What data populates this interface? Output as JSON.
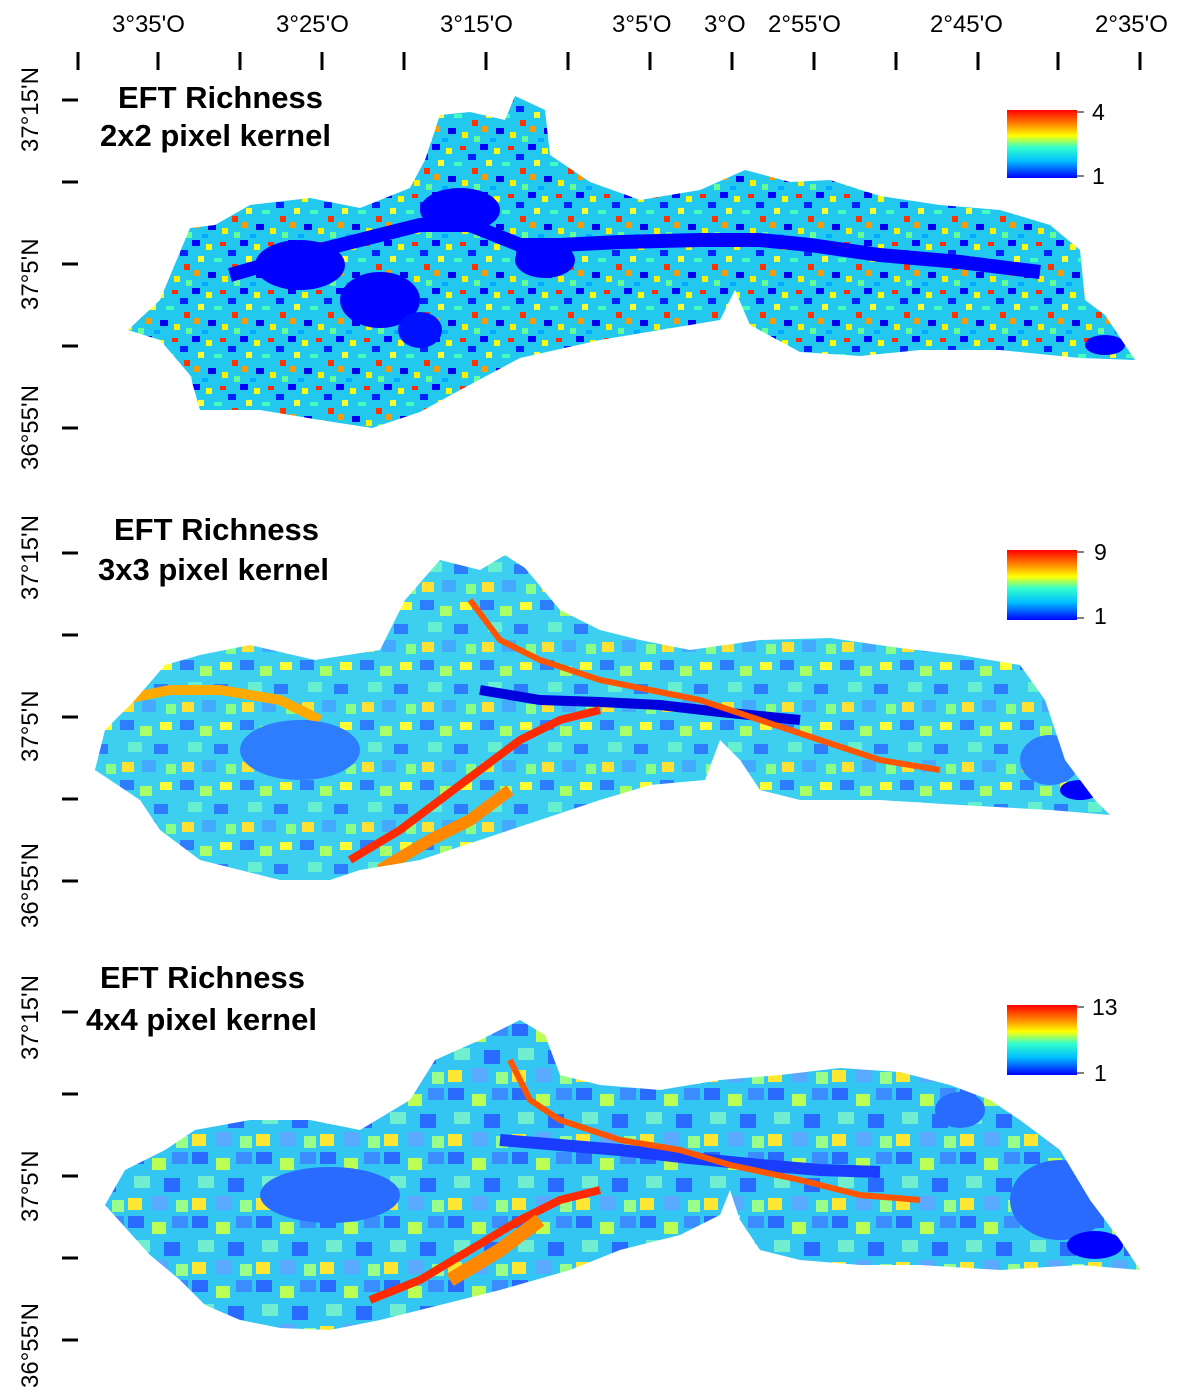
{
  "figure": {
    "longitude_labels": [
      "3°35'O",
      "3°25'O",
      "3°15'O",
      "3°5'O",
      "3°O",
      "2°55'O",
      "2°45'O",
      "2°35'O"
    ],
    "panels": [
      {
        "title_line1": "EFT Richness",
        "title_line2": "2x2 pixel kernel",
        "legend_max": "4",
        "legend_min": "1",
        "lat_label_top": "37°15'N",
        "lat_label_mid": "37°5'N",
        "lat_label_bottom": "36°55'N"
      },
      {
        "title_line1": "EFT Richness",
        "title_line2": "3x3 pixel kernel",
        "legend_max": "9",
        "legend_min": "1",
        "lat_label_top": "37°15'N",
        "lat_label_mid": "37°5'N",
        "lat_label_bottom": "36°55'N"
      },
      {
        "title_line1": "EFT Richness",
        "title_line2": "4x4 pixel kernel",
        "legend_max": "13",
        "legend_min": "1",
        "lat_label_top": "37°15'N",
        "lat_label_mid": "37°5'N",
        "lat_label_bottom": "36°55'N"
      }
    ],
    "colormap": [
      "#0000ff",
      "#00bfff",
      "#33ffcc",
      "#ffff00",
      "#ff8000",
      "#ff0000"
    ]
  }
}
